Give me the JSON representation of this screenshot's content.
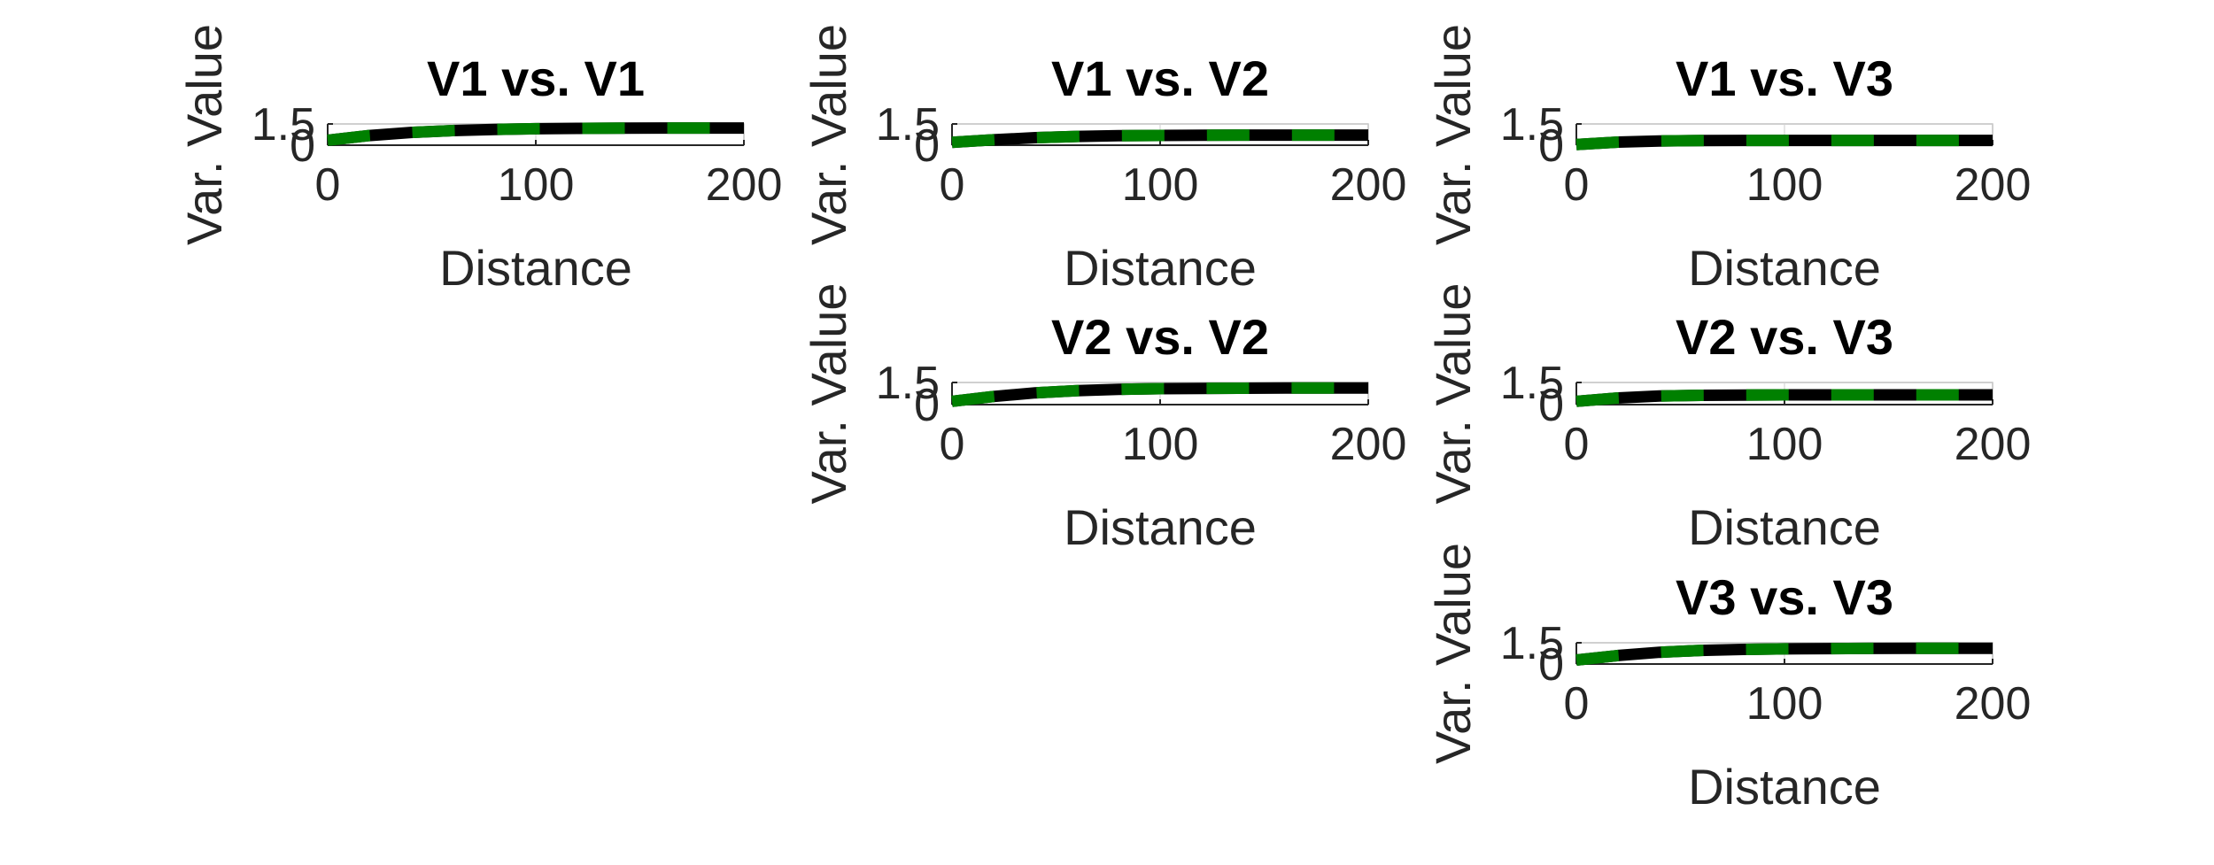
{
  "chart_data": [
    {
      "type": "line",
      "title": "V1 vs. V1",
      "xlabel": "Distance",
      "ylabel": "Var. Value",
      "xlim": [
        0,
        200
      ],
      "ylim": [
        0,
        1.5
      ],
      "xticks": [
        "0",
        "100",
        "200"
      ],
      "yticks": [
        "0",
        "1.5"
      ],
      "grid": true,
      "series": [
        {
          "style": "solid",
          "color": "#000000",
          "x": [
            0,
            20,
            40,
            60,
            80,
            100,
            120,
            140,
            160,
            180,
            200
          ],
          "y": [
            0.35,
            0.68,
            0.9,
            1.03,
            1.11,
            1.16,
            1.19,
            1.2,
            1.21,
            1.21,
            1.21
          ]
        },
        {
          "style": "dashed",
          "color": "#008000",
          "x": [
            0,
            20,
            40,
            60,
            80,
            100,
            120,
            140,
            160,
            180,
            200
          ],
          "y": [
            0.35,
            0.68,
            0.9,
            1.03,
            1.11,
            1.16,
            1.19,
            1.2,
            1.21,
            1.21,
            1.21
          ]
        }
      ]
    },
    {
      "type": "line",
      "title": "V1 vs. V2",
      "xlabel": "Distance",
      "ylabel": "Var. Value",
      "xlim": [
        0,
        200
      ],
      "ylim": [
        0,
        1.5
      ],
      "xticks": [
        "0",
        "100",
        "200"
      ],
      "yticks": [
        "0",
        "1.5"
      ],
      "grid": true,
      "series": [
        {
          "style": "solid",
          "color": "#000000",
          "x": [
            0,
            20,
            40,
            60,
            80,
            100,
            120,
            140,
            160,
            180,
            200
          ],
          "y": [
            0.2,
            0.38,
            0.53,
            0.62,
            0.67,
            0.69,
            0.7,
            0.71,
            0.71,
            0.71,
            0.71
          ]
        },
        {
          "style": "dashed",
          "color": "#008000",
          "x": [
            0,
            20,
            40,
            60,
            80,
            100,
            120,
            140,
            160,
            180,
            200
          ],
          "y": [
            0.2,
            0.38,
            0.53,
            0.62,
            0.67,
            0.69,
            0.7,
            0.71,
            0.71,
            0.71,
            0.71
          ]
        }
      ]
    },
    {
      "type": "line",
      "title": "V1 vs. V3",
      "xlabel": "Distance",
      "ylabel": "Var. Value",
      "xlim": [
        0,
        200
      ],
      "ylim": [
        0,
        1.5
      ],
      "xticks": [
        "0",
        "100",
        "200"
      ],
      "yticks": [
        "0",
        "1.5"
      ],
      "grid": true,
      "series": [
        {
          "style": "solid",
          "color": "#000000",
          "x": [
            0,
            20,
            40,
            60,
            80,
            100,
            120,
            140,
            160,
            180,
            200
          ],
          "y": [
            0.05,
            0.22,
            0.3,
            0.33,
            0.34,
            0.34,
            0.34,
            0.34,
            0.34,
            0.34,
            0.34
          ]
        },
        {
          "style": "dashed",
          "color": "#008000",
          "x": [
            0,
            20,
            40,
            60,
            80,
            100,
            120,
            140,
            160,
            180,
            200
          ],
          "y": [
            0.05,
            0.22,
            0.3,
            0.33,
            0.34,
            0.34,
            0.34,
            0.34,
            0.34,
            0.34,
            0.34
          ]
        }
      ]
    },
    {
      "type": "line",
      "title": "V2 vs. V2",
      "xlabel": "Distance",
      "ylabel": "Var. Value",
      "xlim": [
        0,
        200
      ],
      "ylim": [
        0,
        1.5
      ],
      "xticks": [
        "0",
        "100",
        "200"
      ],
      "yticks": [
        "0",
        "1.5"
      ],
      "grid": true,
      "series": [
        {
          "style": "solid",
          "color": "#000000",
          "x": [
            0,
            20,
            40,
            60,
            80,
            100,
            120,
            140,
            160,
            180,
            200
          ],
          "y": [
            0.22,
            0.55,
            0.8,
            0.95,
            1.03,
            1.08,
            1.1,
            1.11,
            1.12,
            1.12,
            1.12
          ]
        },
        {
          "style": "dashed",
          "color": "#008000",
          "x": [
            0,
            20,
            40,
            60,
            80,
            100,
            120,
            140,
            160,
            180,
            200
          ],
          "y": [
            0.22,
            0.55,
            0.8,
            0.95,
            1.03,
            1.08,
            1.1,
            1.11,
            1.12,
            1.12,
            1.12
          ]
        }
      ]
    },
    {
      "type": "line",
      "title": "V2 vs. V3",
      "xlabel": "Distance",
      "ylabel": "Var. Value",
      "xlim": [
        0,
        200
      ],
      "ylim": [
        0,
        1.5
      ],
      "xticks": [
        "0",
        "100",
        "200"
      ],
      "yticks": [
        "0",
        "1.5"
      ],
      "grid": true,
      "series": [
        {
          "style": "solid",
          "color": "#000000",
          "x": [
            0,
            20,
            40,
            60,
            80,
            100,
            120,
            140,
            160,
            180,
            200
          ],
          "y": [
            0.22,
            0.45,
            0.58,
            0.63,
            0.65,
            0.66,
            0.66,
            0.66,
            0.66,
            0.66,
            0.66
          ]
        },
        {
          "style": "dashed",
          "color": "#008000",
          "x": [
            0,
            20,
            40,
            60,
            80,
            100,
            120,
            140,
            160,
            180,
            200
          ],
          "y": [
            0.22,
            0.45,
            0.58,
            0.63,
            0.65,
            0.66,
            0.66,
            0.66,
            0.66,
            0.66,
            0.66
          ]
        }
      ]
    },
    {
      "type": "line",
      "title": "V3 vs. V3",
      "xlabel": "Distance",
      "ylabel": "Var. Value",
      "xlim": [
        0,
        200
      ],
      "ylim": [
        0,
        1.5
      ],
      "xticks": [
        "0",
        "100",
        "200"
      ],
      "yticks": [
        "0",
        "1.5"
      ],
      "grid": true,
      "series": [
        {
          "style": "solid",
          "color": "#000000",
          "x": [
            0,
            20,
            40,
            60,
            80,
            100,
            120,
            140,
            160,
            180,
            200
          ],
          "y": [
            0.28,
            0.6,
            0.83,
            0.96,
            1.03,
            1.07,
            1.09,
            1.1,
            1.11,
            1.11,
            1.11
          ]
        },
        {
          "style": "dashed",
          "color": "#008000",
          "x": [
            0,
            20,
            40,
            60,
            80,
            100,
            120,
            140,
            160,
            180,
            200
          ],
          "y": [
            0.28,
            0.6,
            0.83,
            0.96,
            1.03,
            1.07,
            1.09,
            1.1,
            1.11,
            1.11,
            1.11
          ]
        }
      ]
    }
  ]
}
